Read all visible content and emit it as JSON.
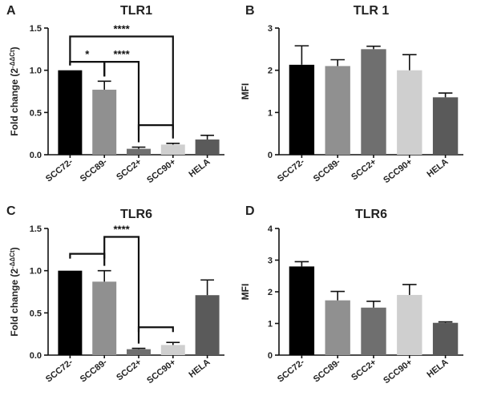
{
  "figure": {
    "background": "#ffffff",
    "text_color": "#222222",
    "bar_colors": [
      "#000000",
      "#909090",
      "#6f6f6f",
      "#cfcfcf",
      "#5a5a5a"
    ]
  },
  "chart_data": [
    {
      "id": "A",
      "type": "bar",
      "panel_label": "A",
      "title": "TLR1",
      "ylabel": "Fold change (2^-ΔΔCt)",
      "categories": [
        "SCC72-",
        "SCC89-",
        "SCC2+",
        "SCC90+",
        "HELA"
      ],
      "values": [
        1.0,
        0.77,
        0.07,
        0.12,
        0.18
      ],
      "errors": [
        0.0,
        0.1,
        0.02,
        0.015,
        0.05
      ],
      "ylim": [
        0,
        1.5
      ],
      "yticks": [
        "0.0",
        "0.5",
        "1.0",
        "1.5"
      ],
      "ytick_values": [
        0,
        0.5,
        1.0,
        1.5
      ],
      "significance": [
        {
          "from": 0,
          "to": 1,
          "label": "*",
          "height": 1.1
        },
        {
          "from": 0,
          "to": 3,
          "label": "****",
          "height": 1.4
        },
        {
          "from": 1,
          "to": 2,
          "label": "****",
          "height": 1.1
        },
        {
          "from": 2,
          "to": 3,
          "label": "",
          "height": 0.35
        }
      ]
    },
    {
      "id": "B",
      "type": "bar",
      "panel_label": "B",
      "title": "TLR 1",
      "ylabel": "MFI",
      "categories": [
        "SCC72-",
        "SCC89-",
        "SCC2+",
        "SCC90+",
        "HELA"
      ],
      "values": [
        2.13,
        2.1,
        2.5,
        2.0,
        1.36
      ],
      "errors": [
        0.45,
        0.15,
        0.07,
        0.37,
        0.1
      ],
      "ylim": [
        0,
        3
      ],
      "yticks": [
        "0",
        "1",
        "2",
        "3"
      ],
      "ytick_values": [
        0,
        1,
        2,
        3
      ],
      "significance": []
    },
    {
      "id": "C",
      "type": "bar",
      "panel_label": "C",
      "title": "TLR6",
      "ylabel": "Fold change (2^-ΔΔCt)",
      "categories": [
        "SCC72-",
        "SCC89-",
        "SCC2+",
        "SCC90+",
        "HELA"
      ],
      "values": [
        1.0,
        0.87,
        0.07,
        0.12,
        0.71
      ],
      "errors": [
        0.0,
        0.13,
        0.01,
        0.03,
        0.18
      ],
      "ylim": [
        0,
        1.5
      ],
      "yticks": [
        "0.0",
        "0.5",
        "1.0",
        "1.5"
      ],
      "ytick_values": [
        0,
        0.5,
        1.0,
        1.5
      ],
      "significance": [
        {
          "from": 0,
          "to": 1,
          "label": "",
          "height": 1.2
        },
        {
          "from": 1,
          "to": 2,
          "label": "****",
          "height": 1.4
        },
        {
          "from": 2,
          "to": 3,
          "label": "",
          "height": 0.33
        }
      ]
    },
    {
      "id": "D",
      "type": "bar",
      "panel_label": "D",
      "title": "TLR6",
      "ylabel": "MFI",
      "categories": [
        "SCC72-",
        "SCC89-",
        "SCC2+",
        "SCC90+",
        "HELA"
      ],
      "values": [
        2.8,
        1.73,
        1.5,
        1.9,
        1.02
      ],
      "errors": [
        0.15,
        0.28,
        0.2,
        0.33,
        0.03
      ],
      "ylim": [
        0,
        4
      ],
      "yticks": [
        "0",
        "1",
        "2",
        "3",
        "4"
      ],
      "ytick_values": [
        0,
        1,
        2,
        3,
        4
      ],
      "significance": []
    }
  ]
}
